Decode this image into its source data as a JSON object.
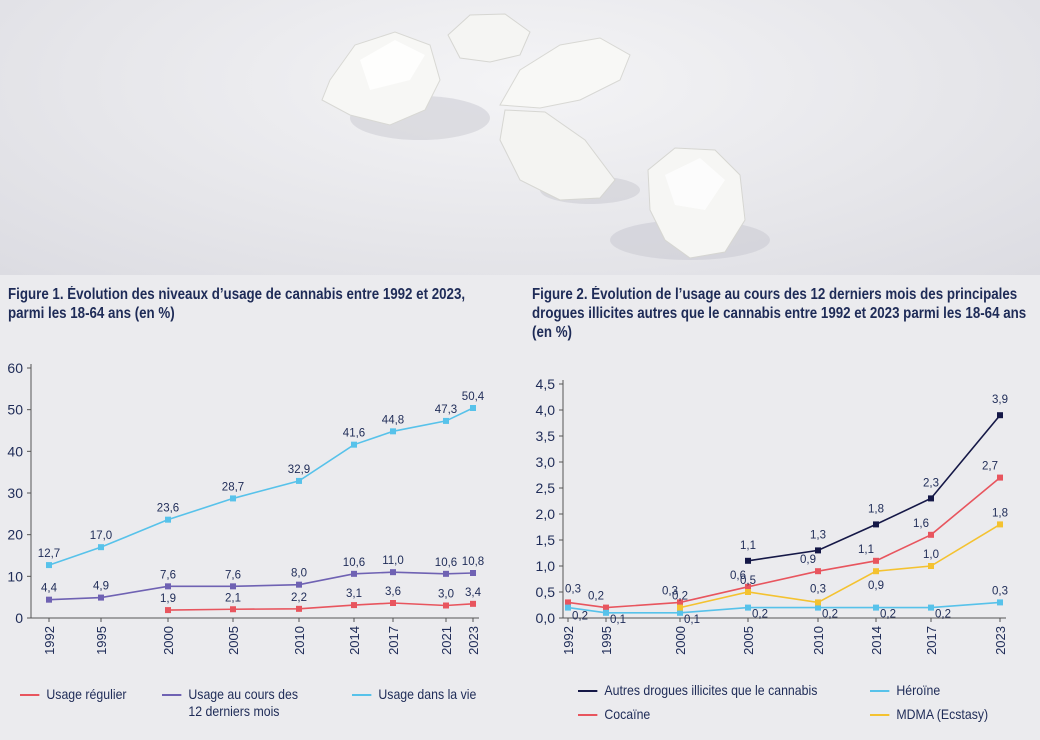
{
  "figure1": {
    "title": "Figure 1. Évolution des niveaux d’usage de cannabis entre 1992 et 2023, parmi les 18-64 ans (en %)"
  },
  "figure2": {
    "title": "Figure 2. Évolution de l’usage au cours des 12 derniers mois des principales drogues illicites autres que le cannabis entre 1992 et 2023 parmi les 18-64 ans (en %)"
  },
  "colors": {
    "red": "#e8555e",
    "purple": "#6f62b3",
    "blue": "#57c2ea",
    "navy": "#151847",
    "yellow": "#f4c230",
    "text": "#1e2b57"
  },
  "chart_data": [
    {
      "type": "line",
      "title": "Figure 1. Évolution des niveaux d’usage de cannabis entre 1992 et 2023, parmi les 18-64 ans (en %)",
      "x": [
        "1992",
        "1995",
        "2000",
        "2005",
        "2010",
        "2014",
        "2017",
        "2021",
        "2023"
      ],
      "ylim": [
        0,
        60
      ],
      "yticks": [
        "0",
        "10",
        "20",
        "30",
        "40",
        "50",
        "60"
      ],
      "series": [
        {
          "name": "Usage régulier",
          "color": "#e8555e",
          "values": [
            null,
            null,
            1.9,
            2.1,
            2.2,
            3.1,
            3.6,
            3.0,
            3.4
          ],
          "labels": [
            null,
            null,
            "1,9",
            "2,1",
            "2,2",
            "3,1",
            "3,6",
            "3,0",
            "3,4"
          ]
        },
        {
          "name": "Usage au cours des\n12 derniers mois",
          "color": "#6f62b3",
          "values": [
            4.4,
            4.9,
            7.6,
            7.6,
            8.0,
            10.6,
            11.0,
            10.6,
            10.8
          ],
          "labels": [
            "4,4",
            "4,9",
            "7,6",
            "7,6",
            "8,0",
            "10,6",
            "11,0",
            "10,6",
            "10,8"
          ]
        },
        {
          "name": "Usage dans la vie",
          "color": "#57c2ea",
          "values": [
            12.7,
            17.0,
            23.6,
            28.7,
            32.9,
            41.6,
            44.8,
            47.3,
            50.4
          ],
          "labels": [
            "12,7",
            "17,0",
            "23,6",
            "28,7",
            "32,9",
            "41,6",
            "44,8",
            "47,3",
            "50,4"
          ]
        }
      ],
      "legend": "bottom"
    },
    {
      "type": "line",
      "title": "Figure 2. Évolution de l’usage au cours des 12 derniers mois des principales drogues illicites autres que le cannabis entre 1992 et 2023 parmi les 18-64 ans (en %)",
      "x": [
        "1992",
        "1995",
        "2000",
        "2005",
        "2010",
        "2014",
        "2017",
        "2023"
      ],
      "ylim": [
        0,
        4.5
      ],
      "yticks": [
        "0,0",
        "0,5",
        "1,0",
        "1,5",
        "2,0",
        "2,5",
        "3,0",
        "3,5",
        "4,0",
        "4,5"
      ],
      "series": [
        {
          "name": "Autres drogues illicites que le cannabis",
          "color": "#151847",
          "values": [
            null,
            null,
            null,
            1.1,
            1.3,
            1.8,
            2.3,
            3.9
          ],
          "labels": [
            null,
            null,
            null,
            "1,1",
            "1,3",
            "1,8",
            "2,3",
            "3,9"
          ]
        },
        {
          "name": "Cocaïne",
          "color": "#e8555e",
          "values": [
            0.3,
            0.2,
            0.3,
            0.6,
            0.9,
            1.1,
            1.6,
            2.7
          ],
          "labels": [
            "0,3",
            "0,2",
            "0,3",
            "0,6",
            "0,9",
            "1,1",
            "1,6",
            "2,7"
          ]
        },
        {
          "name": "Héroïne",
          "color": "#57c2ea",
          "values": [
            0.2,
            0.1,
            0.1,
            0.2,
            0.2,
            0.2,
            0.2,
            0.3
          ],
          "labels": [
            "0,2",
            "0,1",
            "0,1",
            "0,2",
            "0,2",
            "0,2",
            "0,2",
            "0,3"
          ]
        },
        {
          "name": "MDMA (Ecstasy)",
          "color": "#f4c230",
          "values": [
            null,
            null,
            0.2,
            0.5,
            0.3,
            0.9,
            1.0,
            1.8
          ],
          "labels": [
            null,
            null,
            "0,2",
            "0,5",
            "0,3",
            "0,9",
            "1,0",
            "1,8"
          ]
        }
      ],
      "legend": "bottom"
    }
  ]
}
